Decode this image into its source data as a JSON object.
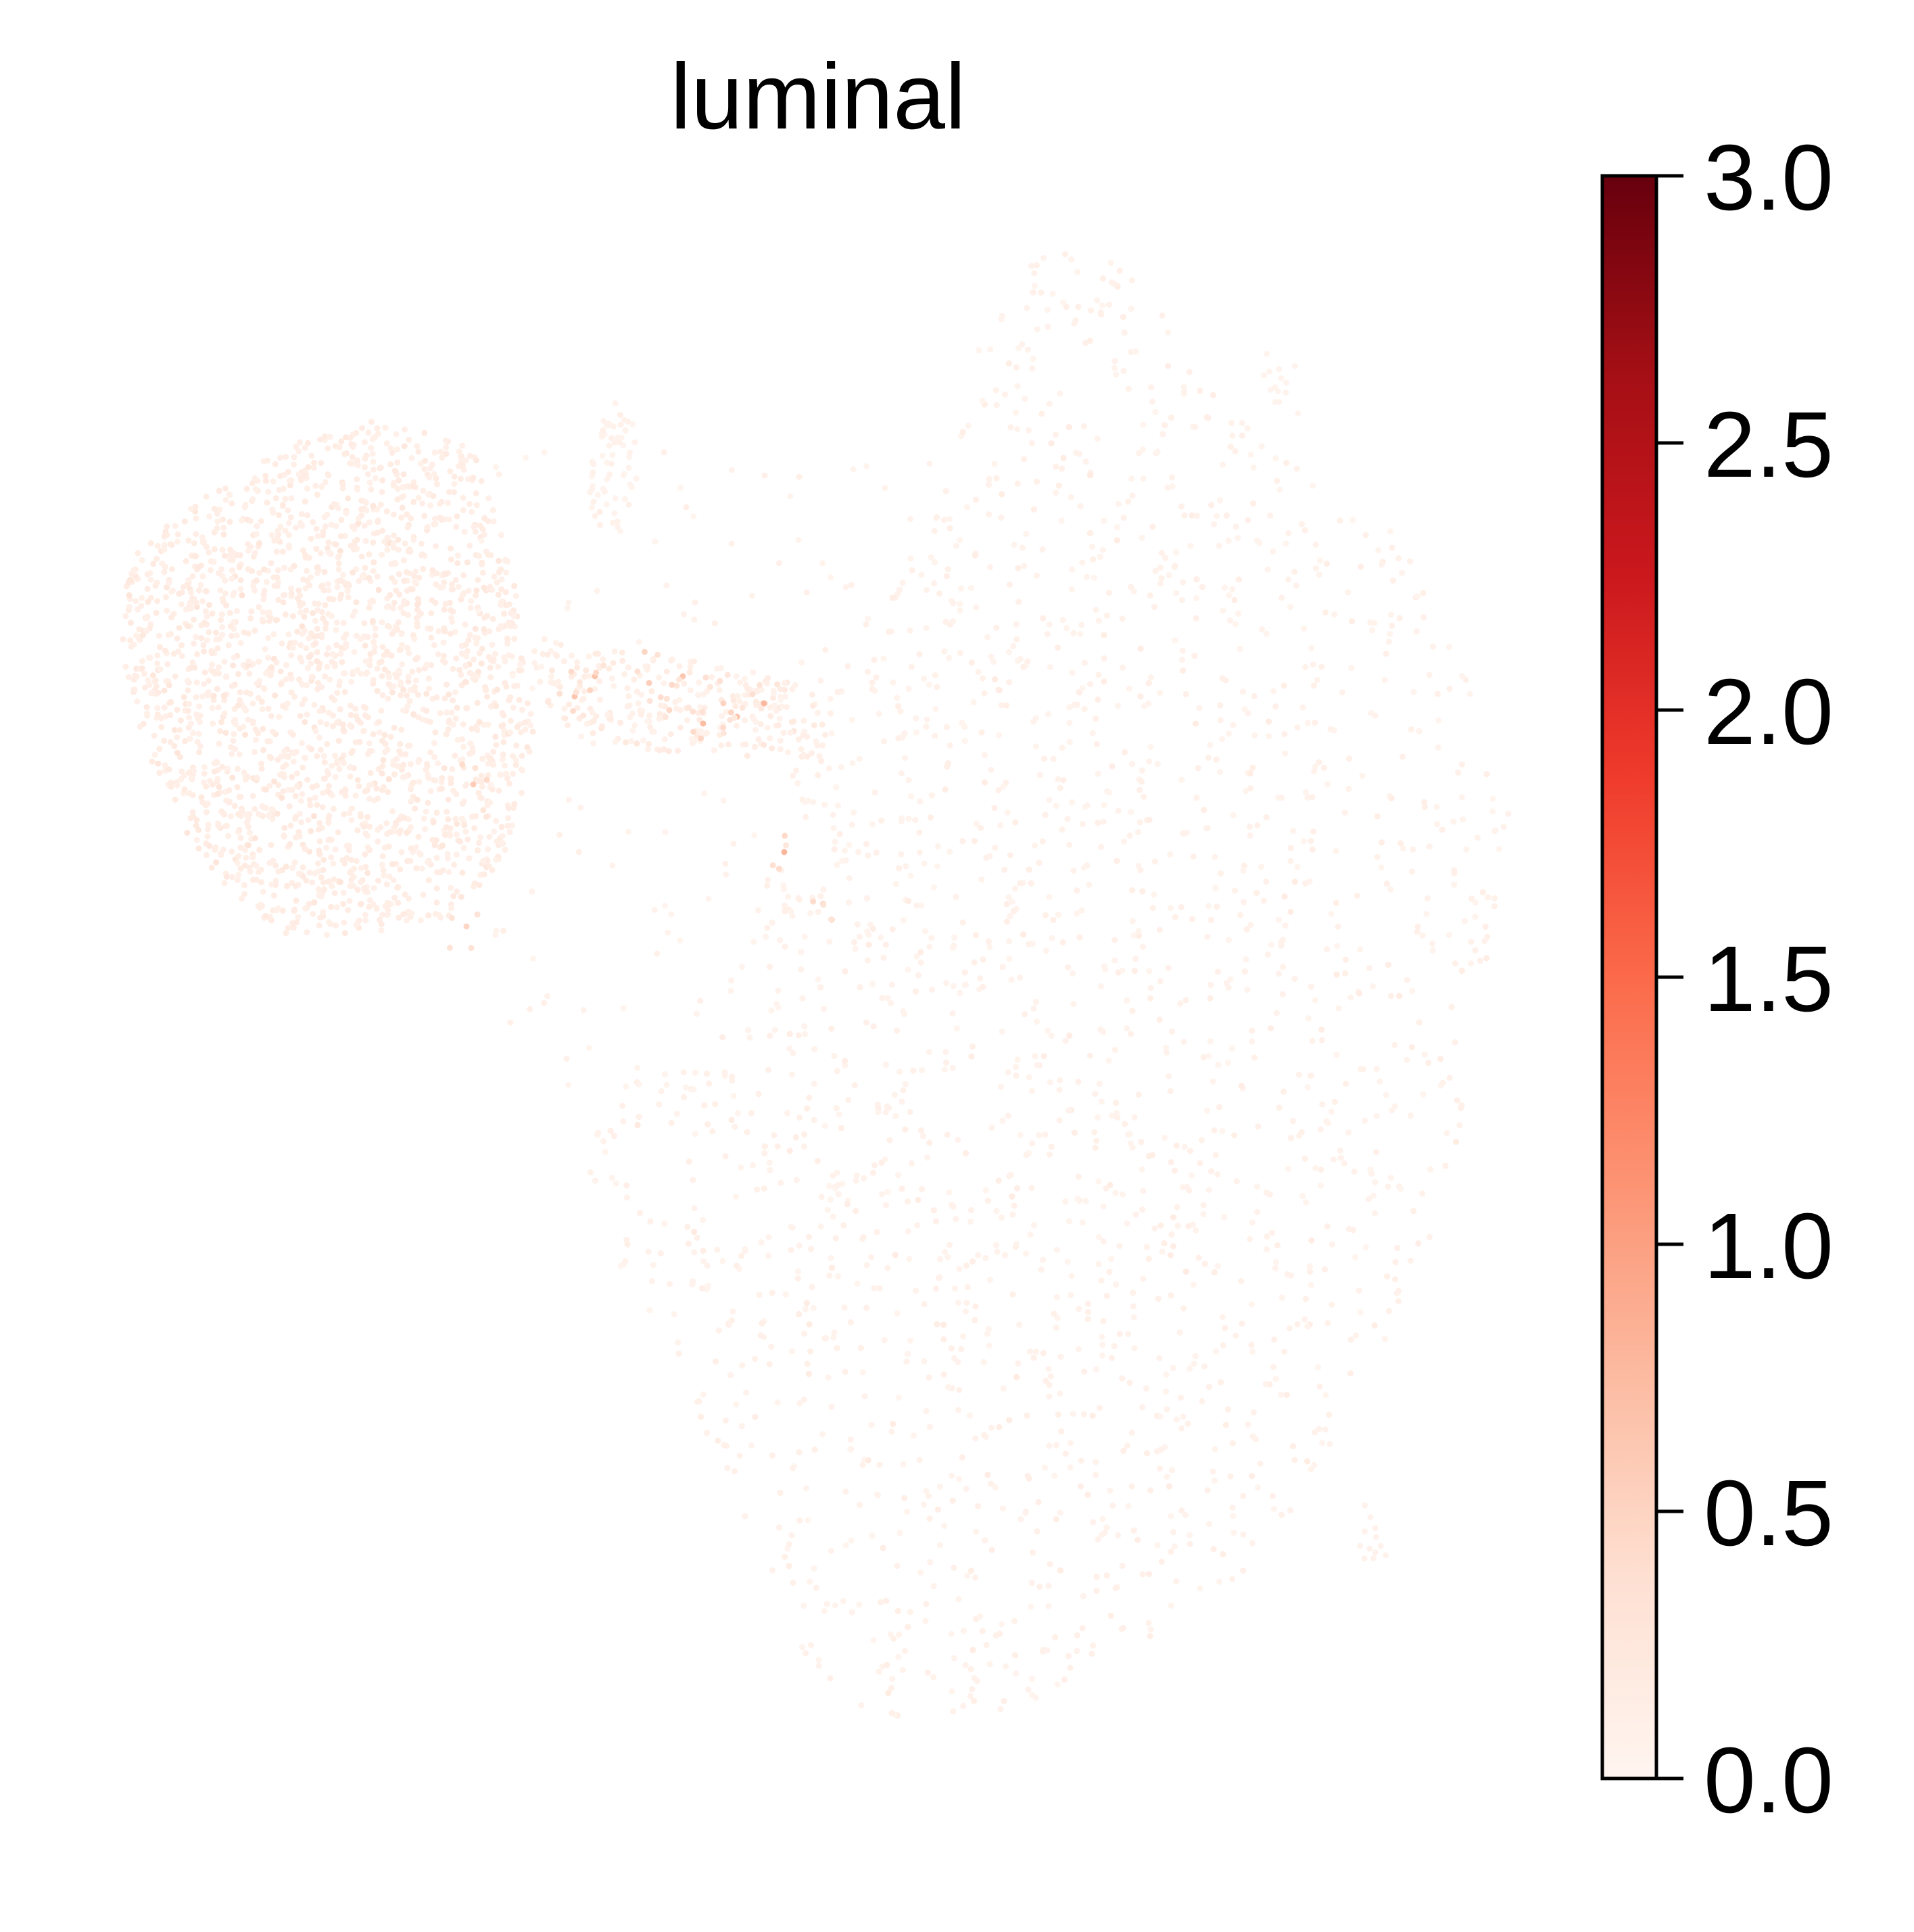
{
  "chart_data": {
    "type": "scatter",
    "title": "luminal",
    "xlabel": "",
    "ylabel": "",
    "axes_visible": false,
    "grid": false,
    "marker": "small dots",
    "colormap": "Reds",
    "colormap_stops": [
      "#fff5f0",
      "#fee0d2",
      "#fcbba1",
      "#fc9272",
      "#fb6a4a",
      "#ef3b2c",
      "#cb181d",
      "#a50f15",
      "#67000d"
    ],
    "colorbar": {
      "placement": "right",
      "vmin": 0.0,
      "vmax": 3.0,
      "ticks": [
        0.0,
        0.5,
        1.0,
        1.5,
        2.0,
        2.5,
        3.0
      ],
      "tick_labels": [
        "0.0",
        "0.5",
        "1.0",
        "1.5",
        "2.0",
        "2.5",
        "3.0"
      ]
    },
    "value_summary": {
      "typical_range": [
        0.0,
        0.3
      ],
      "max_observed_approx": 0.9
    }
  }
}
